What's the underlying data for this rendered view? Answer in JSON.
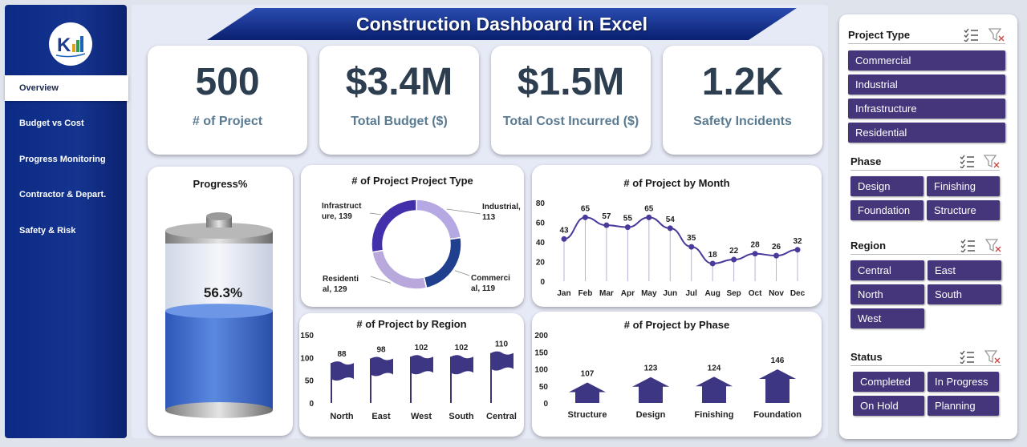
{
  "sidebar": {
    "logo_text": "K",
    "items": [
      {
        "label": "Overview",
        "active": true
      },
      {
        "label": "Budget vs Cost",
        "active": false
      },
      {
        "label": "Progress Monitoring",
        "active": false
      },
      {
        "label": "Contractor & Depart.",
        "active": false
      },
      {
        "label": "Safety & Risk",
        "active": false
      }
    ]
  },
  "header": {
    "title": "Construction Dashboard in Excel"
  },
  "kpis": [
    {
      "value": "500",
      "label": "# of Project"
    },
    {
      "value": "$3.4M",
      "label": "Total Budget ($)"
    },
    {
      "value": "$1.5M",
      "label": "Total Cost Incurred ($)"
    },
    {
      "value": "1.2K",
      "label": "Safety Incidents"
    }
  ],
  "colors": {
    "navy": "#0b2a84",
    "purple": "#45357a",
    "flag": "#3d3783",
    "line": "#4b3a9c"
  },
  "chart_data": [
    {
      "type": "progress",
      "title": "Progress%",
      "value": 56.3,
      "value_label": "56.3%"
    },
    {
      "type": "pie",
      "title": "# of Project Project Type",
      "categories": [
        "Industrial",
        "Commercial",
        "Residential",
        "Infrastructure"
      ],
      "values": [
        113,
        119,
        129,
        139
      ],
      "data_labels": [
        "Industrial, 113",
        "Commerci al, 119",
        "Residenti al, 129",
        "Infrastruct ure, 139"
      ]
    },
    {
      "type": "line",
      "title": "# of Project by Month",
      "categories": [
        "Jan",
        "Feb",
        "Mar",
        "Apr",
        "May",
        "Jun",
        "Jul",
        "Aug",
        "Sep",
        "Oct",
        "Nov",
        "Dec"
      ],
      "values": [
        43,
        65,
        57,
        55,
        65,
        54,
        35,
        18,
        22,
        28,
        26,
        32
      ],
      "ylim": [
        0,
        80
      ],
      "yticks": [
        0,
        20,
        40,
        60,
        80
      ]
    },
    {
      "type": "bar",
      "title": "# of Project  by Region",
      "categories": [
        "North",
        "East",
        "West",
        "South",
        "Central"
      ],
      "values": [
        88,
        98,
        102,
        102,
        110
      ],
      "ylim": [
        0,
        150
      ],
      "yticks": [
        0,
        50,
        100,
        150
      ]
    },
    {
      "type": "bar",
      "title": "# of Project  by Phase",
      "categories": [
        "Structure",
        "Design",
        "Finishing",
        "Foundation"
      ],
      "values": [
        107,
        123,
        124,
        146
      ],
      "ylim": [
        0,
        200
      ],
      "yticks": [
        0,
        50,
        100,
        150,
        200
      ]
    }
  ],
  "slicers": [
    {
      "label": "Project Type",
      "items": [
        "Commercial",
        "Industrial",
        "Infrastructure",
        "Residential"
      ]
    },
    {
      "label": "Phase",
      "items": [
        "Design",
        "Finishing",
        "Foundation",
        "Structure"
      ]
    },
    {
      "label": "Region",
      "items": [
        "Central",
        "East",
        "North",
        "South",
        "West"
      ]
    },
    {
      "label": "Status",
      "items": [
        "Completed",
        "In Progress",
        "On Hold",
        "Planning"
      ]
    }
  ]
}
